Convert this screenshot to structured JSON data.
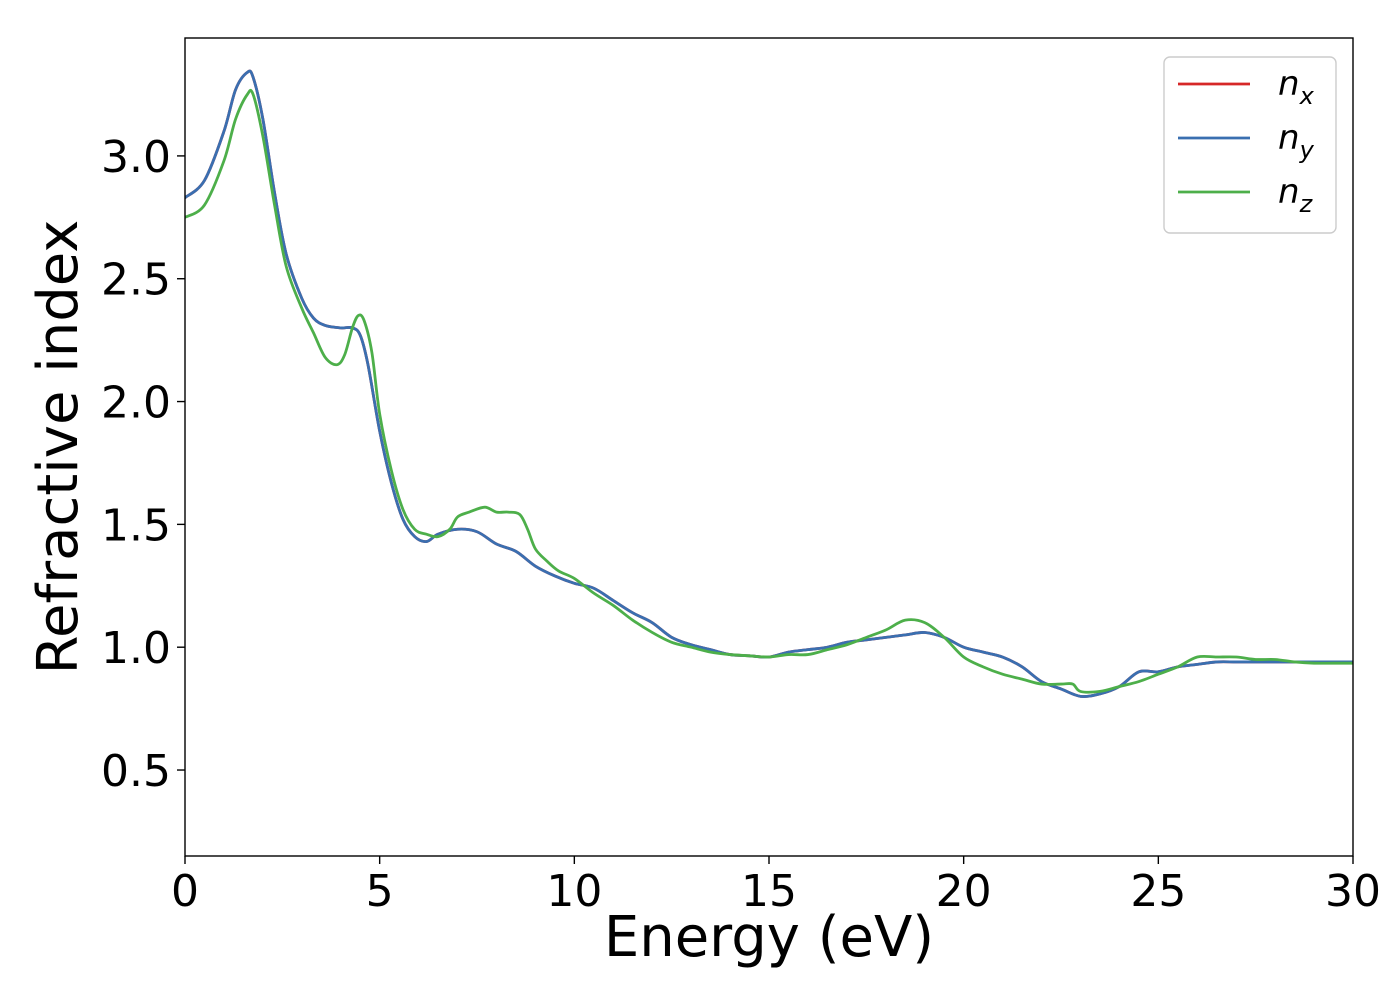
{
  "chart_data": {
    "type": "line",
    "title": "",
    "xlabel": "Energy (eV)",
    "ylabel": "Refractive index",
    "xlim": [
      0,
      30
    ],
    "ylim": [
      0.15,
      3.48
    ],
    "xticks": [
      0,
      5,
      10,
      15,
      20,
      25,
      30
    ],
    "yticks": [
      0.5,
      1.0,
      1.5,
      2.0,
      2.5,
      3.0
    ],
    "xtick_labels": [
      "0",
      "5",
      "10",
      "15",
      "20",
      "25",
      "30"
    ],
    "ytick_labels": [
      "0.5",
      "1.0",
      "1.5",
      "2.0",
      "2.5",
      "3.0"
    ],
    "grid": false,
    "legend_position": "top-right",
    "series": [
      {
        "name": "n_x",
        "label_base": "n",
        "label_sub": "x",
        "color": "#d62728",
        "x": [
          0,
          0.5,
          1.0,
          1.3,
          1.6,
          1.75,
          2.0,
          2.3,
          2.6,
          3.0,
          3.3,
          3.6,
          4.0,
          4.3,
          4.5,
          4.7,
          5.0,
          5.3,
          5.6,
          5.9,
          6.2,
          6.5,
          7.0,
          7.5,
          8.0,
          8.5,
          9.0,
          9.5,
          10.0,
          10.5,
          11.0,
          11.5,
          12.0,
          12.5,
          13.0,
          13.5,
          14.0,
          14.5,
          15.0,
          15.5,
          16.0,
          16.5,
          17.0,
          17.5,
          18.0,
          18.5,
          19.0,
          19.5,
          20.0,
          20.5,
          21.0,
          21.5,
          22.0,
          22.5,
          23.0,
          23.5,
          24.0,
          24.5,
          25.0,
          25.5,
          26.0,
          26.5,
          27.0,
          27.5,
          28.0,
          28.5,
          29.0,
          29.5,
          30.0
        ],
        "y": [
          2.83,
          2.9,
          3.1,
          3.27,
          3.34,
          3.32,
          3.15,
          2.85,
          2.6,
          2.42,
          2.34,
          2.31,
          2.3,
          2.3,
          2.27,
          2.15,
          1.88,
          1.67,
          1.52,
          1.45,
          1.43,
          1.46,
          1.48,
          1.47,
          1.42,
          1.39,
          1.33,
          1.29,
          1.26,
          1.24,
          1.19,
          1.14,
          1.1,
          1.04,
          1.01,
          0.99,
          0.97,
          0.965,
          0.96,
          0.98,
          0.99,
          1.0,
          1.02,
          1.03,
          1.04,
          1.05,
          1.06,
          1.04,
          1.0,
          0.98,
          0.96,
          0.92,
          0.86,
          0.83,
          0.8,
          0.81,
          0.84,
          0.9,
          0.9,
          0.92,
          0.93,
          0.94,
          0.94,
          0.94,
          0.94,
          0.94,
          0.94,
          0.94,
          0.94
        ]
      },
      {
        "name": "n_y",
        "label_base": "n",
        "label_sub": "y",
        "color": "#3a6fb0",
        "x": [
          0,
          0.5,
          1.0,
          1.3,
          1.6,
          1.75,
          2.0,
          2.3,
          2.6,
          3.0,
          3.3,
          3.6,
          4.0,
          4.3,
          4.5,
          4.7,
          5.0,
          5.3,
          5.6,
          5.9,
          6.2,
          6.5,
          7.0,
          7.5,
          8.0,
          8.5,
          9.0,
          9.5,
          10.0,
          10.5,
          11.0,
          11.5,
          12.0,
          12.5,
          13.0,
          13.5,
          14.0,
          14.5,
          15.0,
          15.5,
          16.0,
          16.5,
          17.0,
          17.5,
          18.0,
          18.5,
          19.0,
          19.5,
          20.0,
          20.5,
          21.0,
          21.5,
          22.0,
          22.5,
          23.0,
          23.5,
          24.0,
          24.5,
          25.0,
          25.5,
          26.0,
          26.5,
          27.0,
          27.5,
          28.0,
          28.5,
          29.0,
          29.5,
          30.0
        ],
        "y": [
          2.83,
          2.9,
          3.1,
          3.27,
          3.34,
          3.32,
          3.15,
          2.85,
          2.6,
          2.42,
          2.34,
          2.31,
          2.3,
          2.3,
          2.27,
          2.15,
          1.88,
          1.67,
          1.52,
          1.45,
          1.43,
          1.46,
          1.48,
          1.47,
          1.42,
          1.39,
          1.33,
          1.29,
          1.26,
          1.24,
          1.19,
          1.14,
          1.1,
          1.04,
          1.01,
          0.99,
          0.97,
          0.965,
          0.96,
          0.98,
          0.99,
          1.0,
          1.02,
          1.03,
          1.04,
          1.05,
          1.06,
          1.04,
          1.0,
          0.98,
          0.96,
          0.92,
          0.86,
          0.83,
          0.8,
          0.81,
          0.84,
          0.9,
          0.9,
          0.92,
          0.93,
          0.94,
          0.94,
          0.94,
          0.94,
          0.94,
          0.94,
          0.94,
          0.94
        ]
      },
      {
        "name": "n_z",
        "label_base": "n",
        "label_sub": "z",
        "color": "#4daf4a",
        "x": [
          0,
          0.5,
          1.0,
          1.3,
          1.6,
          1.75,
          2.0,
          2.3,
          2.6,
          3.0,
          3.3,
          3.6,
          3.9,
          4.1,
          4.3,
          4.45,
          4.6,
          4.8,
          5.0,
          5.3,
          5.6,
          5.9,
          6.2,
          6.5,
          6.8,
          7.0,
          7.3,
          7.7,
          8.0,
          8.3,
          8.6,
          8.8,
          9.0,
          9.3,
          9.6,
          10.0,
          10.5,
          11.0,
          11.5,
          12.0,
          12.5,
          13.0,
          13.5,
          14.0,
          14.5,
          15.0,
          15.5,
          16.0,
          16.5,
          17.0,
          17.5,
          18.0,
          18.5,
          19.0,
          19.5,
          20.0,
          20.5,
          21.0,
          21.5,
          22.0,
          22.5,
          22.8,
          23.0,
          23.5,
          24.0,
          24.5,
          25.0,
          25.5,
          26.0,
          26.5,
          27.0,
          27.5,
          28.0,
          28.5,
          29.0,
          29.5,
          30.0
        ],
        "y": [
          2.75,
          2.8,
          2.98,
          3.15,
          3.25,
          3.25,
          3.08,
          2.8,
          2.55,
          2.38,
          2.28,
          2.18,
          2.15,
          2.19,
          2.3,
          2.35,
          2.33,
          2.2,
          1.95,
          1.72,
          1.56,
          1.48,
          1.46,
          1.45,
          1.48,
          1.53,
          1.55,
          1.57,
          1.55,
          1.55,
          1.54,
          1.48,
          1.4,
          1.35,
          1.31,
          1.28,
          1.22,
          1.17,
          1.11,
          1.06,
          1.02,
          1.0,
          0.98,
          0.97,
          0.965,
          0.96,
          0.97,
          0.97,
          0.99,
          1.01,
          1.04,
          1.07,
          1.11,
          1.1,
          1.04,
          0.96,
          0.92,
          0.89,
          0.87,
          0.85,
          0.85,
          0.85,
          0.82,
          0.82,
          0.84,
          0.86,
          0.89,
          0.92,
          0.96,
          0.96,
          0.96,
          0.95,
          0.95,
          0.94,
          0.935,
          0.935,
          0.935
        ]
      }
    ]
  }
}
